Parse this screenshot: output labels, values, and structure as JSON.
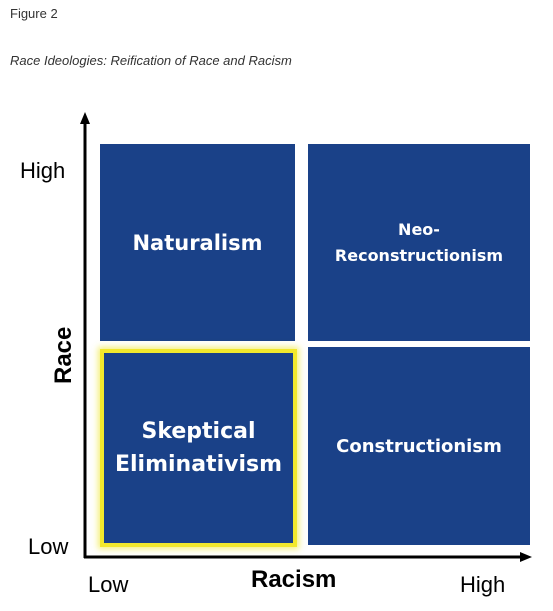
{
  "figure": {
    "label": "Figure 2",
    "caption": "Race Ideologies: Reification of Race and Racism"
  },
  "axes": {
    "x_title": "Racism",
    "y_title": "Race",
    "x_low": "Low",
    "x_high": "High",
    "y_low": "Low",
    "y_high": "High"
  },
  "quadrants": {
    "high_race_low_racism": "Naturalism",
    "high_race_high_racism": "Neo-\nReconstructionism",
    "low_race_low_racism": "Skeptical\nEliminativism",
    "low_race_high_racism": "Constructionism"
  },
  "colors": {
    "quadrant_fill": "#1a4188",
    "highlight": "#f2e82c",
    "axis": "#000000"
  }
}
